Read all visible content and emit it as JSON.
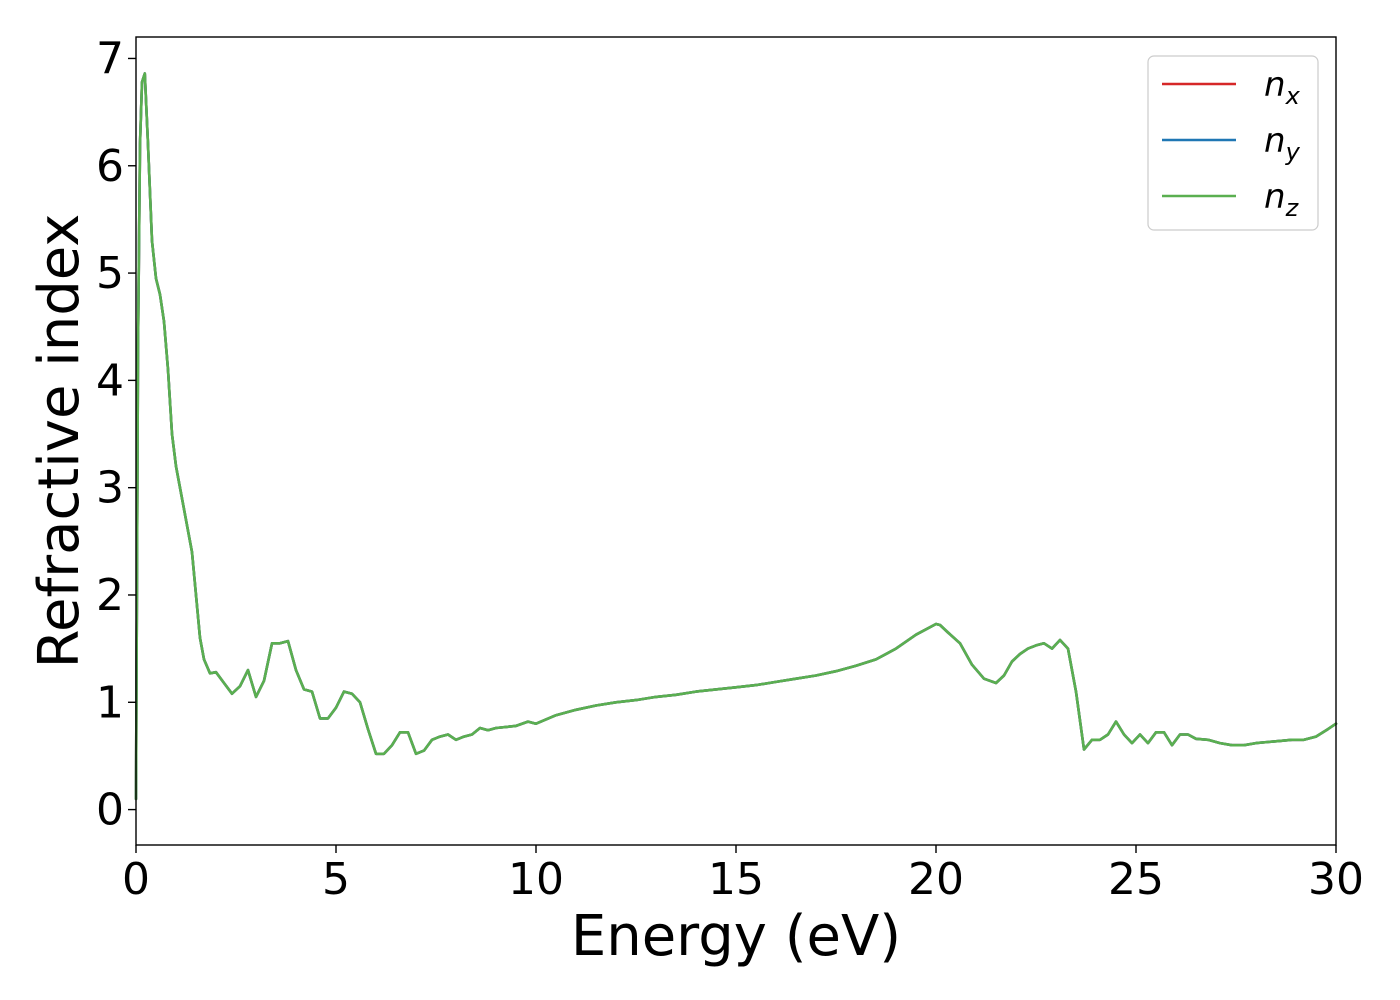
{
  "chart_data": {
    "type": "line",
    "xlabel": "Energy (eV)",
    "ylabel": "Refractive index",
    "xlim": [
      0,
      30
    ],
    "ylim": [
      -0.33,
      7.2
    ],
    "xticks": [
      0,
      5,
      10,
      15,
      20,
      25,
      30
    ],
    "yticks": [
      0,
      1,
      2,
      3,
      4,
      5,
      6,
      7
    ],
    "grid": false,
    "legend_position": "top-right",
    "series": [
      {
        "name": "n_x",
        "label_base": "n",
        "label_sub": "x",
        "color": "#d62728",
        "x": [
          0.0,
          0.05,
          0.1,
          0.15,
          0.22,
          0.3,
          0.4,
          0.5,
          0.6,
          0.7,
          0.8,
          0.9,
          1.0,
          1.2,
          1.4,
          1.5,
          1.6,
          1.7,
          1.85,
          2.0,
          2.2,
          2.4,
          2.6,
          2.8,
          3.0,
          3.2,
          3.4,
          3.6,
          3.8,
          4.0,
          4.2,
          4.4,
          4.6,
          4.8,
          5.0,
          5.2,
          5.4,
          5.6,
          5.8,
          6.0,
          6.2,
          6.4,
          6.6,
          6.8,
          7.0,
          7.2,
          7.4,
          7.6,
          7.8,
          8.0,
          8.2,
          8.4,
          8.6,
          8.8,
          9.0,
          9.5,
          9.8,
          10.0,
          10.5,
          11.0,
          11.5,
          12.0,
          12.5,
          13.0,
          13.5,
          14.0,
          14.5,
          15.0,
          15.5,
          16.0,
          16.5,
          17.0,
          17.5,
          18.0,
          18.5,
          19.0,
          19.5,
          20.0,
          20.1,
          20.3,
          20.6,
          20.9,
          21.2,
          21.5,
          21.7,
          21.9,
          22.1,
          22.3,
          22.5,
          22.7,
          22.9,
          23.1,
          23.3,
          23.5,
          23.7,
          23.9,
          24.1,
          24.3,
          24.5,
          24.7,
          24.9,
          25.1,
          25.3,
          25.5,
          25.7,
          25.9,
          26.1,
          26.3,
          26.5,
          26.8,
          27.1,
          27.4,
          27.7,
          28.0,
          28.3,
          28.6,
          28.9,
          29.2,
          29.5,
          29.8,
          30.0
        ],
        "y": [
          0.1,
          4.3,
          6.2,
          6.78,
          6.86,
          6.2,
          5.3,
          4.95,
          4.8,
          4.55,
          4.1,
          3.5,
          3.2,
          2.8,
          2.4,
          2.0,
          1.6,
          1.4,
          1.27,
          1.28,
          1.18,
          1.08,
          1.15,
          1.3,
          1.05,
          1.2,
          1.55,
          1.55,
          1.57,
          1.3,
          1.12,
          1.1,
          0.85,
          0.85,
          0.95,
          1.1,
          1.08,
          1.0,
          0.75,
          0.52,
          0.52,
          0.6,
          0.72,
          0.72,
          0.52,
          0.55,
          0.65,
          0.68,
          0.7,
          0.65,
          0.68,
          0.7,
          0.76,
          0.74,
          0.76,
          0.78,
          0.82,
          0.8,
          0.88,
          0.93,
          0.97,
          1.0,
          1.02,
          1.05,
          1.07,
          1.1,
          1.12,
          1.14,
          1.16,
          1.19,
          1.22,
          1.25,
          1.29,
          1.34,
          1.4,
          1.5,
          1.63,
          1.73,
          1.72,
          1.65,
          1.55,
          1.35,
          1.22,
          1.18,
          1.25,
          1.38,
          1.45,
          1.5,
          1.53,
          1.55,
          1.5,
          1.58,
          1.5,
          1.1,
          0.56,
          0.65,
          0.65,
          0.7,
          0.82,
          0.7,
          0.62,
          0.7,
          0.62,
          0.72,
          0.72,
          0.6,
          0.7,
          0.7,
          0.66,
          0.65,
          0.62,
          0.6,
          0.6,
          0.62,
          0.63,
          0.64,
          0.65,
          0.65,
          0.68,
          0.75,
          0.8
        ]
      },
      {
        "name": "n_y",
        "label_base": "n",
        "label_sub": "y",
        "color": "#1f77b4",
        "x": [
          0.0,
          0.05,
          0.1,
          0.15,
          0.22,
          0.3,
          0.4,
          0.5,
          0.6,
          0.7,
          0.8,
          0.9,
          1.0,
          1.2,
          1.4,
          1.5,
          1.6,
          1.7,
          1.85,
          2.0,
          2.2,
          2.4,
          2.6,
          2.8,
          3.0,
          3.2,
          3.4,
          3.6,
          3.8,
          4.0,
          4.2,
          4.4,
          4.6,
          4.8,
          5.0,
          5.2,
          5.4,
          5.6,
          5.8,
          6.0,
          6.2,
          6.4,
          6.6,
          6.8,
          7.0,
          7.2,
          7.4,
          7.6,
          7.8,
          8.0,
          8.2,
          8.4,
          8.6,
          8.8,
          9.0,
          9.5,
          9.8,
          10.0,
          10.5,
          11.0,
          11.5,
          12.0,
          12.5,
          13.0,
          13.5,
          14.0,
          14.5,
          15.0,
          15.5,
          16.0,
          16.5,
          17.0,
          17.5,
          18.0,
          18.5,
          19.0,
          19.5,
          20.0,
          20.1,
          20.3,
          20.6,
          20.9,
          21.2,
          21.5,
          21.7,
          21.9,
          22.1,
          22.3,
          22.5,
          22.7,
          22.9,
          23.1,
          23.3,
          23.5,
          23.7,
          23.9,
          24.1,
          24.3,
          24.5,
          24.7,
          24.9,
          25.1,
          25.3,
          25.5,
          25.7,
          25.9,
          26.1,
          26.3,
          26.5,
          26.8,
          27.1,
          27.4,
          27.7,
          28.0,
          28.3,
          28.6,
          28.9,
          29.2,
          29.5,
          29.8,
          30.0
        ],
        "y": [
          0.1,
          4.3,
          6.2,
          6.78,
          6.86,
          6.2,
          5.3,
          4.95,
          4.8,
          4.55,
          4.1,
          3.5,
          3.2,
          2.8,
          2.4,
          2.0,
          1.6,
          1.4,
          1.27,
          1.28,
          1.18,
          1.08,
          1.15,
          1.3,
          1.05,
          1.2,
          1.55,
          1.55,
          1.57,
          1.3,
          1.12,
          1.1,
          0.85,
          0.85,
          0.95,
          1.1,
          1.08,
          1.0,
          0.75,
          0.52,
          0.52,
          0.6,
          0.72,
          0.72,
          0.52,
          0.55,
          0.65,
          0.68,
          0.7,
          0.65,
          0.68,
          0.7,
          0.76,
          0.74,
          0.76,
          0.78,
          0.82,
          0.8,
          0.88,
          0.93,
          0.97,
          1.0,
          1.02,
          1.05,
          1.07,
          1.1,
          1.12,
          1.14,
          1.16,
          1.19,
          1.22,
          1.25,
          1.29,
          1.34,
          1.4,
          1.5,
          1.63,
          1.73,
          1.72,
          1.65,
          1.55,
          1.35,
          1.22,
          1.18,
          1.25,
          1.38,
          1.45,
          1.5,
          1.53,
          1.55,
          1.5,
          1.58,
          1.5,
          1.1,
          0.56,
          0.65,
          0.65,
          0.7,
          0.82,
          0.7,
          0.62,
          0.7,
          0.62,
          0.72,
          0.72,
          0.6,
          0.7,
          0.7,
          0.66,
          0.65,
          0.62,
          0.6,
          0.6,
          0.62,
          0.63,
          0.64,
          0.65,
          0.65,
          0.68,
          0.75,
          0.8
        ]
      },
      {
        "name": "n_z",
        "label_base": "n",
        "label_sub": "z",
        "color": "#5aaf50",
        "x": [
          0.0,
          0.05,
          0.1,
          0.15,
          0.22,
          0.3,
          0.4,
          0.5,
          0.6,
          0.7,
          0.8,
          0.9,
          1.0,
          1.2,
          1.4,
          1.5,
          1.6,
          1.7,
          1.85,
          2.0,
          2.2,
          2.4,
          2.6,
          2.8,
          3.0,
          3.2,
          3.4,
          3.6,
          3.8,
          4.0,
          4.2,
          4.4,
          4.6,
          4.8,
          5.0,
          5.2,
          5.4,
          5.6,
          5.8,
          6.0,
          6.2,
          6.4,
          6.6,
          6.8,
          7.0,
          7.2,
          7.4,
          7.6,
          7.8,
          8.0,
          8.2,
          8.4,
          8.6,
          8.8,
          9.0,
          9.5,
          9.8,
          10.0,
          10.5,
          11.0,
          11.5,
          12.0,
          12.5,
          13.0,
          13.5,
          14.0,
          14.5,
          15.0,
          15.5,
          16.0,
          16.5,
          17.0,
          17.5,
          18.0,
          18.5,
          19.0,
          19.5,
          20.0,
          20.1,
          20.3,
          20.6,
          20.9,
          21.2,
          21.5,
          21.7,
          21.9,
          22.1,
          22.3,
          22.5,
          22.7,
          22.9,
          23.1,
          23.3,
          23.5,
          23.7,
          23.9,
          24.1,
          24.3,
          24.5,
          24.7,
          24.9,
          25.1,
          25.3,
          25.5,
          25.7,
          25.9,
          26.1,
          26.3,
          26.5,
          26.8,
          27.1,
          27.4,
          27.7,
          28.0,
          28.3,
          28.6,
          28.9,
          29.2,
          29.5,
          29.8,
          30.0
        ],
        "y": [
          0.1,
          4.3,
          6.2,
          6.78,
          6.86,
          6.2,
          5.3,
          4.95,
          4.8,
          4.55,
          4.1,
          3.5,
          3.2,
          2.8,
          2.4,
          2.0,
          1.6,
          1.4,
          1.27,
          1.28,
          1.18,
          1.08,
          1.15,
          1.3,
          1.05,
          1.2,
          1.55,
          1.55,
          1.57,
          1.3,
          1.12,
          1.1,
          0.85,
          0.85,
          0.95,
          1.1,
          1.08,
          1.0,
          0.75,
          0.52,
          0.52,
          0.6,
          0.72,
          0.72,
          0.52,
          0.55,
          0.65,
          0.68,
          0.7,
          0.65,
          0.68,
          0.7,
          0.76,
          0.74,
          0.76,
          0.78,
          0.82,
          0.8,
          0.88,
          0.93,
          0.97,
          1.0,
          1.02,
          1.05,
          1.07,
          1.1,
          1.12,
          1.14,
          1.16,
          1.19,
          1.22,
          1.25,
          1.29,
          1.34,
          1.4,
          1.5,
          1.63,
          1.73,
          1.72,
          1.65,
          1.55,
          1.35,
          1.22,
          1.18,
          1.25,
          1.38,
          1.45,
          1.5,
          1.53,
          1.55,
          1.5,
          1.58,
          1.5,
          1.1,
          0.56,
          0.65,
          0.65,
          0.7,
          0.82,
          0.7,
          0.62,
          0.7,
          0.62,
          0.72,
          0.72,
          0.6,
          0.7,
          0.7,
          0.66,
          0.65,
          0.62,
          0.6,
          0.6,
          0.62,
          0.63,
          0.64,
          0.65,
          0.65,
          0.68,
          0.75,
          0.8
        ]
      }
    ]
  }
}
